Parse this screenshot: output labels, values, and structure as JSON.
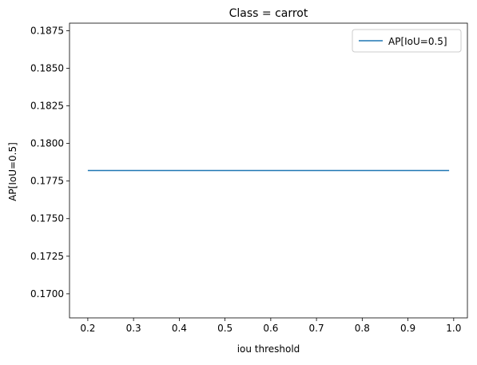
{
  "chart_data": {
    "type": "line",
    "title": "Class = carrot",
    "xlabel": "iou threshold",
    "ylabel": "AP[IoU=0.5]",
    "xlim": [
      0.16,
      1.03
    ],
    "ylim": [
      0.1684,
      0.188
    ],
    "x_ticks": [
      0.2,
      0.3,
      0.4,
      0.5,
      0.6,
      0.7,
      0.8,
      0.9,
      1.0
    ],
    "x_tick_labels": [
      "0.2",
      "0.3",
      "0.4",
      "0.5",
      "0.6",
      "0.7",
      "0.8",
      "0.9",
      "1.0"
    ],
    "y_ticks": [
      0.17,
      0.1725,
      0.175,
      0.1775,
      0.18,
      0.1825,
      0.185,
      0.1875
    ],
    "y_tick_labels": [
      "0.1700",
      "0.1725",
      "0.1750",
      "0.1775",
      "0.1800",
      "0.1825",
      "0.1850",
      "0.1875"
    ],
    "grid": false,
    "legend_position": "top-right",
    "series": [
      {
        "name": "AP[IoU=0.5]",
        "color": "#1f77b4",
        "x": [
          0.2,
          0.99
        ],
        "y": [
          0.1782,
          0.1782
        ]
      }
    ]
  }
}
